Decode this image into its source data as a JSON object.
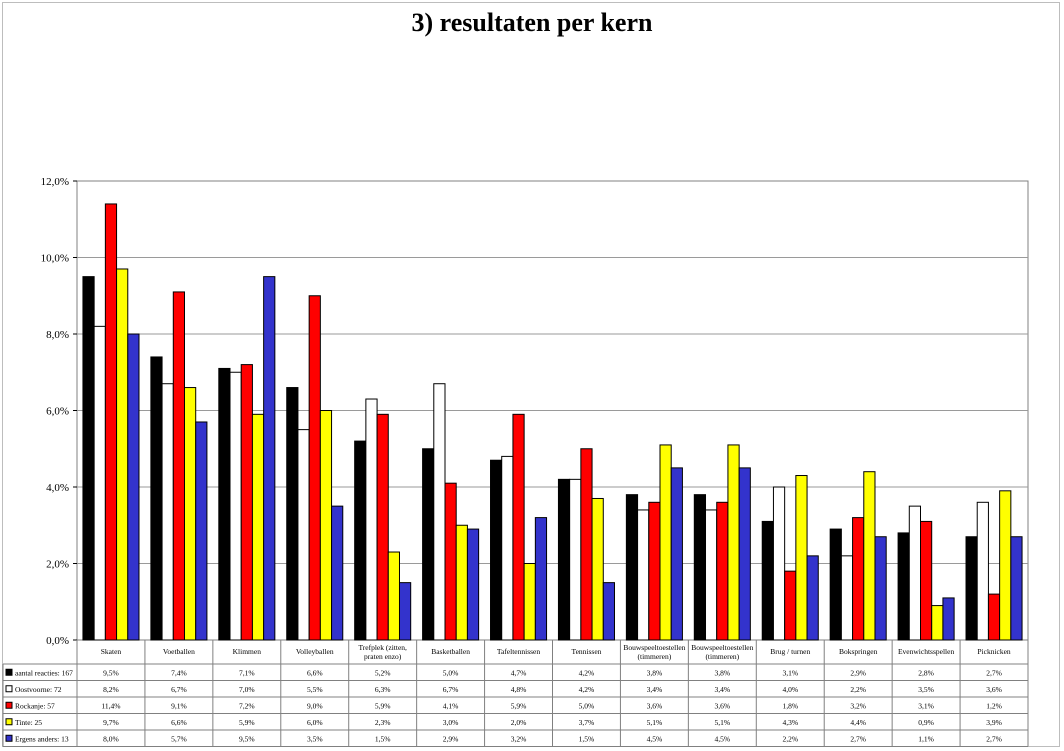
{
  "chart_data": {
    "type": "bar",
    "title": "3) resultaten per kern",
    "ylim": [
      0,
      12
    ],
    "yticks": [
      "0,0%",
      "2,0%",
      "4,0%",
      "6,0%",
      "8,0%",
      "10,0%",
      "12,0%"
    ],
    "grid": true,
    "legend": "data-table-below",
    "categories": [
      [
        "Skaten"
      ],
      [
        "Voetballen"
      ],
      [
        "Klimmen"
      ],
      [
        "Volleyballen"
      ],
      [
        "Trefplek (zitten,",
        "praten enzo)"
      ],
      [
        "Basketballen"
      ],
      [
        "Tafeltennissen"
      ],
      [
        "Tennissen"
      ],
      [
        "Bouwspeeltoestellen",
        "(timmeren)"
      ],
      [
        "Bouwspeeltoestellen",
        "(timmeren)"
      ],
      [
        "Brug / turnen"
      ],
      [
        "Bokspringen"
      ],
      [
        "Evenwichtsspellen"
      ],
      [
        "Picknicken"
      ]
    ],
    "series": [
      {
        "name": "aantal reacties: 167",
        "color": "#000000",
        "values": [
          9.5,
          7.4,
          7.1,
          6.6,
          5.2,
          5.0,
          4.7,
          4.2,
          3.8,
          3.8,
          3.1,
          2.9,
          2.8,
          2.7
        ],
        "labels": [
          "9,5%",
          "7,4%",
          "7,1%",
          "6,6%",
          "5,2%",
          "5,0%",
          "4,7%",
          "4,2%",
          "3,8%",
          "3,8%",
          "3,1%",
          "2,9%",
          "2,8%",
          "2,7%"
        ]
      },
      {
        "name": "Oostvoorne: 72",
        "color": "#ffffff",
        "values": [
          8.2,
          6.7,
          7.0,
          5.5,
          6.3,
          6.7,
          4.8,
          4.2,
          3.4,
          3.4,
          4.0,
          2.2,
          3.5,
          3.6
        ],
        "labels": [
          "8,2%",
          "6,7%",
          "7,0%",
          "5,5%",
          "6,3%",
          "6,7%",
          "4,8%",
          "4,2%",
          "3,4%",
          "3,4%",
          "4,0%",
          "2,2%",
          "3,5%",
          "3,6%"
        ]
      },
      {
        "name": "Rockanje: 57",
        "color": "#ff0000",
        "values": [
          11.4,
          9.1,
          7.2,
          9.0,
          5.9,
          4.1,
          5.9,
          5.0,
          3.6,
          3.6,
          1.8,
          3.2,
          3.1,
          1.2
        ],
        "labels": [
          "11,4%",
          "9,1%",
          "7,2%",
          "9,0%",
          "5,9%",
          "4,1%",
          "5,9%",
          "5,0%",
          "3,6%",
          "3,6%",
          "1,8%",
          "3,2%",
          "3,1%",
          "1,2%"
        ]
      },
      {
        "name": "Tinte: 25",
        "color": "#ffff00",
        "values": [
          9.7,
          6.6,
          5.9,
          6.0,
          2.3,
          3.0,
          2.0,
          3.7,
          5.1,
          5.1,
          4.3,
          4.4,
          0.9,
          3.9
        ],
        "labels": [
          "9,7%",
          "6,6%",
          "5,9%",
          "6,0%",
          "2,3%",
          "3,0%",
          "2,0%",
          "3,7%",
          "5,1%",
          "5,1%",
          "4,3%",
          "4,4%",
          "0,9%",
          "3,9%"
        ]
      },
      {
        "name": "Ergens anders: 13",
        "color": "#3333cc",
        "values": [
          8.0,
          5.7,
          9.5,
          3.5,
          1.5,
          2.9,
          3.2,
          1.5,
          4.5,
          4.5,
          2.2,
          2.7,
          1.1,
          2.7
        ],
        "labels": [
          "8,0%",
          "5,7%",
          "9,5%",
          "3,5%",
          "1,5%",
          "2,9%",
          "3,2%",
          "1,5%",
          "4,5%",
          "4,5%",
          "2,2%",
          "2,7%",
          "1,1%",
          "2,7%"
        ]
      }
    ]
  }
}
